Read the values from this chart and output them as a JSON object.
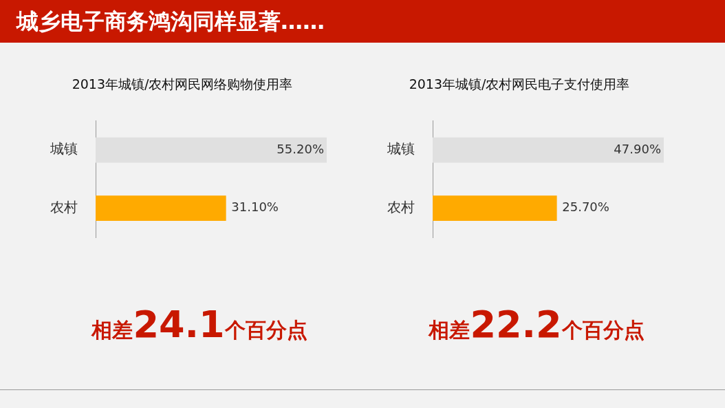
{
  "chart_data": [
    {
      "type": "other",
      "title": "城乡电子商务鸿沟同样显著……"
    },
    {
      "type": "bar",
      "orientation": "horizontal",
      "title": "2013年城镇/农村网民网络购物使用率",
      "categories": [
        "城镇",
        "农村"
      ],
      "values": [
        55.2,
        31.1
      ],
      "colors": [
        "#e0e0e0",
        "#ffaa00"
      ],
      "value_labels": [
        "55.20%",
        "31.10%"
      ],
      "annotations": [
        "相差24.1个百分点"
      ]
    },
    {
      "type": "bar",
      "orientation": "horizontal",
      "title": "2013年城镇/农村网民电子支付使用率",
      "categories": [
        "城镇",
        "农村"
      ],
      "values": [
        47.9,
        25.7
      ],
      "colors": [
        "#e0e0e0",
        "#ffaa00"
      ],
      "value_labels": [
        "47.90%",
        "25.70%"
      ],
      "annotations": [
        "相差22.2个百分点"
      ]
    }
  ]
}
